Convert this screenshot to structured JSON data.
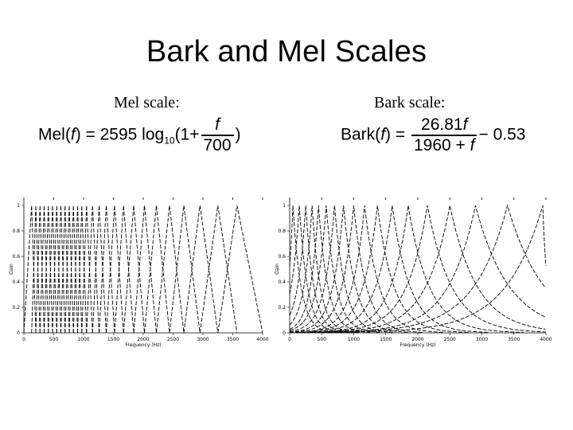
{
  "slide": {
    "title": "Bark and Mel Scales"
  },
  "mel": {
    "label": "Mel scale:",
    "formula": {
      "lhs": "Mel(",
      "var": "f",
      "rhs": ") = 2595 log",
      "sub": "10",
      "open": "(1+",
      "num": "f",
      "den": "700",
      "close": ")"
    },
    "chart": {
      "xlabel": "Frequency (Hz)",
      "ylabel": "Gain",
      "xticks": [
        "0",
        "500",
        "1000",
        "1500",
        "2000",
        "2500",
        "3000",
        "3500",
        "4000"
      ],
      "yticks": [
        "0",
        "0.2",
        "0.4",
        "0.6",
        "0.8",
        "1"
      ]
    }
  },
  "bark": {
    "label": "Bark scale:",
    "formula": {
      "lhs": "Bark(",
      "var": "f",
      "rhs": ") =",
      "num": "26.81",
      "num_var": "f",
      "den": "1960 +",
      "den_var": "f",
      "tail": "− 0.53"
    },
    "chart": {
      "xlabel": "Frequency (Hz)",
      "ylabel": "Gain",
      "xticks": [
        "0",
        "500",
        "1000",
        "1500",
        "2000",
        "2500",
        "3000",
        "3500",
        "4000"
      ],
      "yticks": [
        "0",
        "0.2",
        "0.4",
        "0.6",
        "0.8",
        "1"
      ]
    }
  },
  "chart_data": [
    {
      "type": "line",
      "title": "Mel scale",
      "xlabel": "Frequency (Hz)",
      "ylabel": "Gain",
      "xlim": [
        0,
        4000
      ],
      "ylim": [
        0,
        1
      ],
      "filter_peaks_hz": [
        130,
        200,
        270,
        340,
        410,
        480,
        550,
        620,
        690,
        760,
        830,
        900,
        970,
        1050,
        1150,
        1260,
        1380,
        1520,
        1670,
        1840,
        2020,
        2220,
        2440,
        2680,
        2950,
        3250,
        3570
      ]
    },
    {
      "type": "line",
      "title": "Bark scale",
      "xlabel": "Frequency (Hz)",
      "ylabel": "Gain",
      "xlim": [
        0,
        4000
      ],
      "ylim": [
        0,
        1
      ],
      "filter_peaks_hz": [
        50,
        150,
        250,
        350,
        450,
        570,
        700,
        840,
        1000,
        1170,
        1370,
        1600,
        1850,
        2150,
        2500,
        2900,
        3400,
        3950
      ]
    }
  ]
}
